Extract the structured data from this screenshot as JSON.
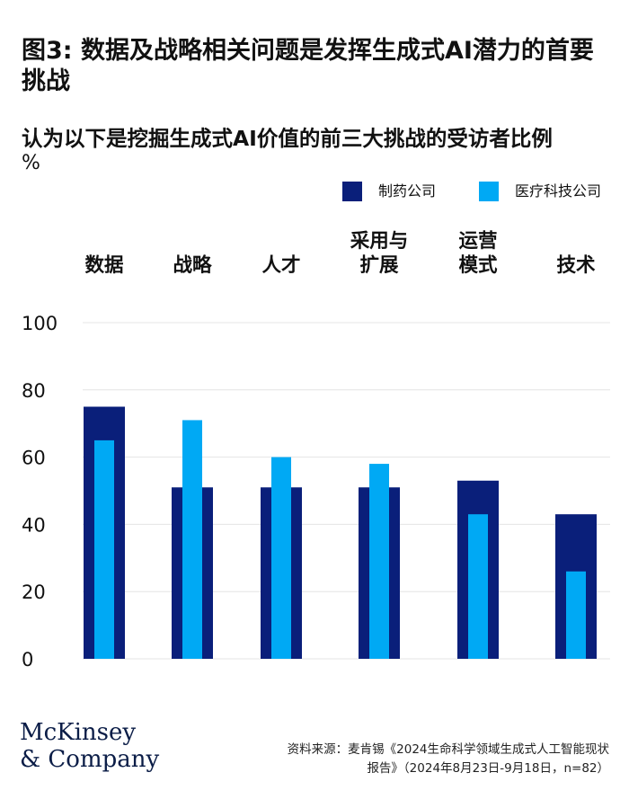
{
  "chart_data": {
    "type": "bar",
    "title": "图3: 数据及战略相关问题是发挥生成式AI潜力的首要挑战",
    "subtitle": "认为以下是挖掘生成式AI价值的前三大挑战的受访者比例",
    "unit": "%",
    "categories": [
      "数据",
      "战略",
      "人才",
      "采用与\n扩展",
      "运营\n模式",
      "技术"
    ],
    "series": [
      {
        "name": "制药公司",
        "color": "#0a1f7a",
        "values": [
          75,
          51,
          51,
          51,
          53,
          43
        ]
      },
      {
        "name": "医疗科技公司",
        "color": "#00a9f4",
        "values": [
          65,
          71,
          60,
          58,
          43,
          26
        ]
      }
    ],
    "ylim": [
      0,
      100
    ],
    "yticks": [
      "0",
      "20",
      "40",
      "60",
      "80",
      "100"
    ],
    "grid": true,
    "legend_position": "top-right"
  },
  "footer": {
    "source_line1": "资料来源：麦肯锡《2024生命科学领域生成式人工智能现状",
    "source_line2": "报告》（2024年8月23日-9月18日，n=82）",
    "logo_line1": "McKinsey",
    "logo_line2": "& Company"
  }
}
